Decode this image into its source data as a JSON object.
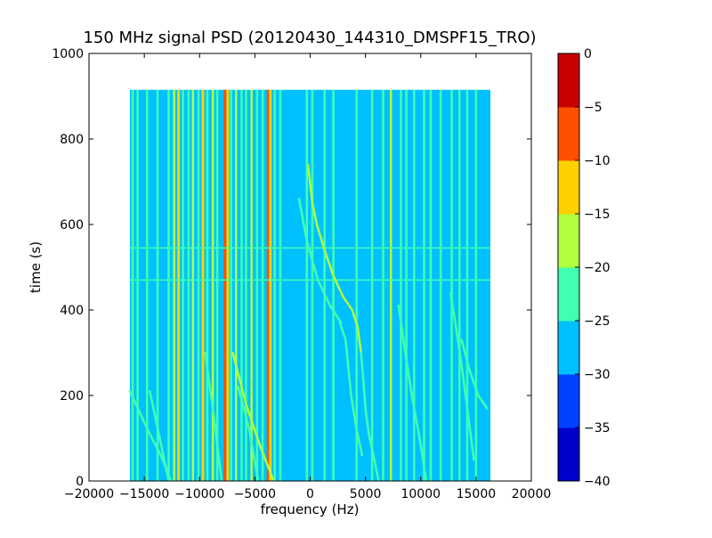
{
  "chart_data": {
    "type": "heatmap",
    "title": "150 MHz signal PSD (20120430_144310_DMSPF15_TRO)",
    "xlabel": "frequency (Hz)",
    "ylabel": "time (s)",
    "xlim": [
      -20000,
      20000
    ],
    "ylim": [
      0,
      1000
    ],
    "xticks": [
      -20000,
      -15000,
      -10000,
      -5000,
      0,
      5000,
      10000,
      15000,
      20000
    ],
    "xtick_labels": [
      "−20000",
      "−15000",
      "−10000",
      "−5000",
      "0",
      "5000",
      "10000",
      "15000",
      "20000"
    ],
    "yticks": [
      0,
      200,
      400,
      600,
      800,
      1000
    ],
    "ytick_labels": [
      "0",
      "200",
      "400",
      "600",
      "800",
      "1000"
    ],
    "data_extent": {
      "x": [
        -16300,
        16300
      ],
      "y": [
        0,
        915
      ]
    },
    "grid": false,
    "background_level": -27.5,
    "colorbar": {
      "levels": [
        -40,
        -35,
        -30,
        -25,
        -20,
        -15,
        -10,
        -5,
        0
      ],
      "tick_labels": [
        "−40",
        "−35",
        "−30",
        "−25",
        "−20",
        "−15",
        "−10",
        "−5",
        "0"
      ],
      "colors": [
        "#0000cd",
        "#0040ff",
        "#00c0ff",
        "#40ffb0",
        "#b0ff40",
        "#ffd000",
        "#ff5000",
        "#c80000"
      ]
    },
    "vertical_lines": [
      {
        "freq": -16050,
        "level": -22.5
      },
      {
        "freq": -15600,
        "level": -22.5
      },
      {
        "freq": -14750,
        "level": -22.5
      },
      {
        "freq": -13800,
        "level": -22.5
      },
      {
        "freq": -12800,
        "level": -22.5
      },
      {
        "freq": -12300,
        "level": -17.5
      },
      {
        "freq": -11900,
        "level": -12.5
      },
      {
        "freq": -11500,
        "level": -22.5
      },
      {
        "freq": -11000,
        "level": -22.5
      },
      {
        "freq": -10600,
        "level": -17.5
      },
      {
        "freq": -10100,
        "level": -22.5
      },
      {
        "freq": -9700,
        "level": -12.5
      },
      {
        "freq": -9300,
        "level": -22.5
      },
      {
        "freq": -8800,
        "level": -17.5
      },
      {
        "freq": -8400,
        "level": -22.5
      },
      {
        "freq": -7700,
        "level": -7.5
      },
      {
        "freq": -7450,
        "level": -12.5
      },
      {
        "freq": -7150,
        "level": -22.5
      },
      {
        "freq": -6700,
        "level": -17.5
      },
      {
        "freq": -6200,
        "level": -22.5
      },
      {
        "freq": -5800,
        "level": -22.5
      },
      {
        "freq": -5300,
        "level": -17.5
      },
      {
        "freq": -4800,
        "level": -22.5
      },
      {
        "freq": -4300,
        "level": -22.5
      },
      {
        "freq": -3800,
        "level": -7.5
      },
      {
        "freq": -3600,
        "level": -12.5
      },
      {
        "freq": -3200,
        "level": -22.5
      },
      {
        "freq": -2700,
        "level": -22.5
      },
      {
        "freq": -300,
        "level": -22.5
      },
      {
        "freq": 200,
        "level": -22.5
      },
      {
        "freq": 1300,
        "level": -22.5
      },
      {
        "freq": 2100,
        "level": -22.5
      },
      {
        "freq": 4200,
        "level": -22.5
      },
      {
        "freq": 5600,
        "level": -22.5
      },
      {
        "freq": 6600,
        "level": -22.5
      },
      {
        "freq": 7300,
        "level": -17.5
      },
      {
        "freq": 8200,
        "level": -22.5
      },
      {
        "freq": 8700,
        "level": -22.5
      },
      {
        "freq": 9400,
        "level": -22.5
      },
      {
        "freq": 10300,
        "level": -22.5
      },
      {
        "freq": 10900,
        "level": -22.5
      },
      {
        "freq": 11800,
        "level": -22.5
      },
      {
        "freq": 12800,
        "level": -22.5
      },
      {
        "freq": 13500,
        "level": -22.5
      },
      {
        "freq": 14200,
        "level": -22.5
      },
      {
        "freq": 15000,
        "level": -22.5
      }
    ],
    "horizontal_lines": [
      {
        "time": 545,
        "level": -22.5
      },
      {
        "time": 470,
        "level": -22.5
      }
    ],
    "traces": [
      {
        "name": "",
        "level": -22.5,
        "points": [
          [
            -16300,
            210
          ],
          [
            -14700,
            120
          ],
          [
            -13500,
            60
          ],
          [
            -12600,
            0
          ]
        ]
      },
      {
        "name": "",
        "level": -22.5,
        "points": [
          [
            -14500,
            210
          ],
          [
            -13600,
            100
          ],
          [
            -12800,
            0
          ]
        ]
      },
      {
        "name": "",
        "level": -17.5,
        "points": [
          [
            -7000,
            300
          ],
          [
            -5800,
            180
          ],
          [
            -4500,
            80
          ],
          [
            -3300,
            0
          ]
        ]
      },
      {
        "name": "",
        "level": -22.5,
        "points": [
          [
            -9500,
            300
          ],
          [
            -8700,
            150
          ],
          [
            -8000,
            0
          ]
        ]
      },
      {
        "name": "",
        "level": -17.5,
        "points": [
          [
            -200,
            740
          ],
          [
            200,
            650
          ],
          [
            600,
            600
          ],
          [
            1300,
            540
          ],
          [
            2100,
            480
          ],
          [
            3000,
            430
          ],
          [
            3800,
            400
          ],
          [
            4300,
            360
          ],
          [
            4600,
            300
          ]
        ]
      },
      {
        "name": "",
        "level": -22.5,
        "points": [
          [
            -1000,
            660
          ],
          [
            -300,
            560
          ],
          [
            700,
            470
          ],
          [
            1800,
            410
          ],
          [
            2800,
            370
          ]
        ]
      },
      {
        "name": "",
        "level": -22.5,
        "points": [
          [
            4600,
            300
          ],
          [
            4800,
            240
          ],
          [
            5000,
            170
          ],
          [
            5300,
            110
          ],
          [
            5800,
            50
          ],
          [
            6200,
            0
          ]
        ]
      },
      {
        "name": "",
        "level": -22.5,
        "points": [
          [
            2700,
            370
          ],
          [
            3200,
            330
          ],
          [
            3400,
            280
          ],
          [
            3700,
            200
          ],
          [
            4200,
            120
          ],
          [
            4700,
            60
          ]
        ]
      },
      {
        "name": "",
        "level": -22.5,
        "points": [
          [
            8000,
            410
          ],
          [
            8600,
            300
          ],
          [
            9200,
            200
          ],
          [
            9900,
            100
          ],
          [
            10500,
            0
          ]
        ]
      },
      {
        "name": "",
        "level": -22.5,
        "points": [
          [
            12700,
            440
          ],
          [
            13300,
            340
          ],
          [
            13800,
            250
          ],
          [
            14300,
            150
          ],
          [
            14800,
            50
          ]
        ]
      },
      {
        "name": "",
        "level": -22.5,
        "points": [
          [
            13700,
            330
          ],
          [
            14400,
            260
          ],
          [
            15200,
            200
          ],
          [
            16000,
            170
          ]
        ]
      },
      {
        "name": "",
        "level": -22.5,
        "points": [
          [
            -6500,
            220
          ],
          [
            -5500,
            120
          ],
          [
            -4700,
            0
          ]
        ]
      }
    ]
  }
}
